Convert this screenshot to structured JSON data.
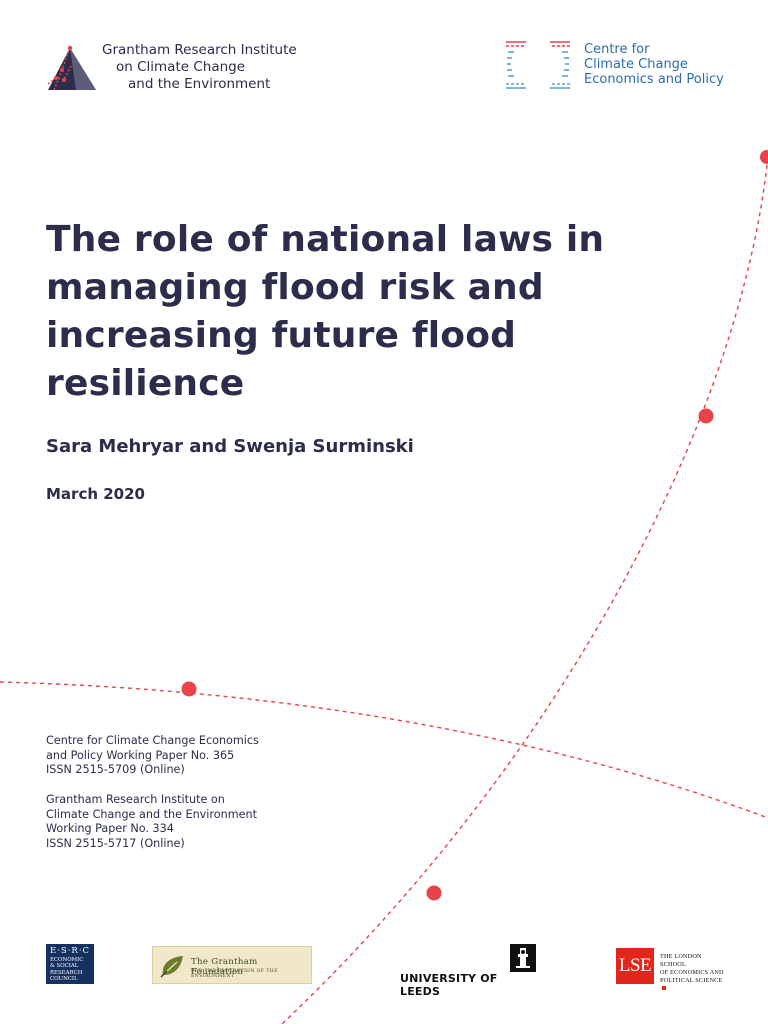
{
  "header": {
    "grantham_logo": {
      "icon": "mountain-logo-icon",
      "lines": [
        "Grantham Research Institute",
        "on Climate Change",
        "and the Environment"
      ]
    },
    "cccep_logo": {
      "icon": "cccep-bracket-logo-icon",
      "lines": [
        "Centre for",
        "Climate Change",
        "Economics and Policy"
      ]
    }
  },
  "main": {
    "title": "The role of national laws in managing flood risk and increasing future flood resilience",
    "authors": "Sara Mehryar and Swenja Surminski",
    "date": "March 2020"
  },
  "papers": {
    "cccep": [
      "Centre for Climate Change Economics",
      "and Policy Working Paper No. 365",
      "ISSN 2515-5709 (Online)"
    ],
    "gri": [
      "Grantham Research Institute on",
      "Climate Change and the Environment",
      "Working Paper No. 334",
      "ISSN 2515-5717 (Online)"
    ]
  },
  "footer": {
    "esrc": {
      "letters": "E·S·R·C",
      "words": [
        "ECONOMIC",
        "& SOCIAL",
        "RESEARCH",
        "COUNCIL"
      ]
    },
    "grantham_foundation": {
      "title": "The Grantham Foundation",
      "subtitle": "FOR THE PROTECTION OF THE ENVIRONMENT"
    },
    "leeds": {
      "text": "UNIVERSITY OF LEEDS"
    },
    "lse": {
      "box": "LSE",
      "lines": [
        "THE LONDON SCHOOL",
        "OF ECONOMICS AND",
        "POLITICAL SCIENCE"
      ]
    }
  },
  "colors": {
    "title": "#2b2d4a",
    "accent_red": "#e8424a",
    "cccep_blue": "#2a6bb0",
    "lse_red": "#e1261c"
  }
}
